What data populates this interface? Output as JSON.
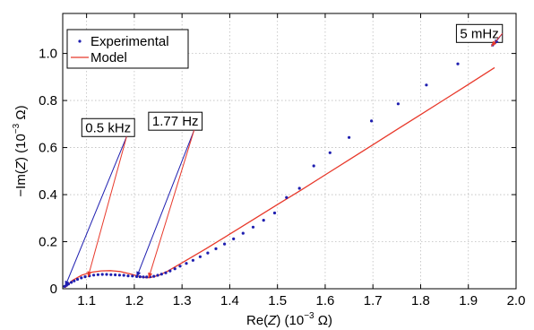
{
  "chart_data": {
    "type": "scatter",
    "xlabel": {
      "pre": "Re(",
      "var": "Z",
      "mid": ") (10",
      "exp": "−3",
      "post": " Ω)"
    },
    "ylabel": {
      "pre": "−Im(",
      "var": "Z",
      "mid": ") (10",
      "exp": "−3",
      "post": " Ω)"
    },
    "xlim": [
      1.05,
      2.0
    ],
    "ylim": [
      0,
      1.17
    ],
    "grid": true,
    "xticks": [
      1.1,
      1.2,
      1.3,
      1.4,
      1.5,
      1.6,
      1.7,
      1.8,
      1.9,
      2.0
    ],
    "xtick_labels": [
      "1.1",
      "1.2",
      "1.3",
      "1.4",
      "1.5",
      "1.6",
      "1.7",
      "1.8",
      "1.9",
      "2.0"
    ],
    "yticks": [
      0,
      0.2,
      0.4,
      0.6,
      0.8,
      1.0
    ],
    "ytick_labels": [
      "0",
      "0.2",
      "0.4",
      "0.6",
      "0.8",
      "1.0"
    ],
    "legend_position": "top-left",
    "legend": [
      {
        "label": "Experimental",
        "color": "#1f1fb0",
        "marker": "dot"
      },
      {
        "label": "Model",
        "color": "#e8392b",
        "marker": "line"
      }
    ],
    "series": [
      {
        "name": "Experimental",
        "kind": "points",
        "color": "#1f1fb0",
        "x": [
          1.054,
          1.058,
          1.062,
          1.068,
          1.074,
          1.081,
          1.089,
          1.097,
          1.106,
          1.115,
          1.124,
          1.133,
          1.142,
          1.151,
          1.16,
          1.169,
          1.178,
          1.187,
          1.196,
          1.205,
          1.212,
          1.219,
          1.226,
          1.233,
          1.241,
          1.249,
          1.257,
          1.266,
          1.275,
          1.285,
          1.296,
          1.309,
          1.323,
          1.338,
          1.354,
          1.371,
          1.389,
          1.408,
          1.428,
          1.449,
          1.471,
          1.494,
          1.519,
          1.546,
          1.576,
          1.61,
          1.65,
          1.697,
          1.753,
          1.812,
          1.878,
          1.951
        ],
        "y": [
          0.01,
          0.015,
          0.02,
          0.027,
          0.033,
          0.04,
          0.046,
          0.051,
          0.055,
          0.058,
          0.06,
          0.061,
          0.061,
          0.06,
          0.059,
          0.058,
          0.057,
          0.055,
          0.054,
          0.052,
          0.051,
          0.05,
          0.05,
          0.051,
          0.053,
          0.057,
          0.062,
          0.068,
          0.076,
          0.085,
          0.096,
          0.108,
          0.121,
          0.136,
          0.152,
          0.17,
          0.19,
          0.212,
          0.236,
          0.262,
          0.291,
          0.322,
          0.388,
          0.427,
          0.522,
          0.578,
          0.643,
          0.713,
          0.786,
          0.866,
          0.956,
          1.036
        ]
      },
      {
        "name": "Model",
        "kind": "line",
        "color": "#e8392b",
        "x": [
          1.055,
          1.07,
          1.09,
          1.11,
          1.13,
          1.15,
          1.17,
          1.19,
          1.21,
          1.225,
          1.235,
          1.25,
          1.27,
          1.3,
          1.35,
          1.4,
          1.45,
          1.5,
          1.55,
          1.6,
          1.65,
          1.7,
          1.75,
          1.8,
          1.85,
          1.9,
          1.955
        ],
        "y": [
          0.005,
          0.035,
          0.058,
          0.07,
          0.076,
          0.077,
          0.073,
          0.064,
          0.053,
          0.047,
          0.048,
          0.056,
          0.075,
          0.11,
          0.17,
          0.232,
          0.295,
          0.358,
          0.42,
          0.484,
          0.548,
          0.612,
          0.676,
          0.74,
          0.804,
          0.868,
          0.94
        ]
      }
    ],
    "annotations": [
      {
        "label": "0.5 kHz",
        "box_x": 1.09,
        "box_y": 0.685,
        "blue_to": [
          1.055,
          0.01
        ],
        "red_to": [
          1.103,
          0.05
        ]
      },
      {
        "label": "1.77 Hz",
        "box_x": 1.23,
        "box_y": 0.712,
        "blue_to": [
          1.205,
          0.05
        ],
        "red_to": [
          1.23,
          0.045
        ]
      },
      {
        "label": "5 mHz",
        "box_x": 1.875,
        "box_y": 1.085,
        "blue_to": [
          1.953,
          1.037
        ],
        "red_to": [
          1.948,
          1.03
        ]
      }
    ]
  }
}
